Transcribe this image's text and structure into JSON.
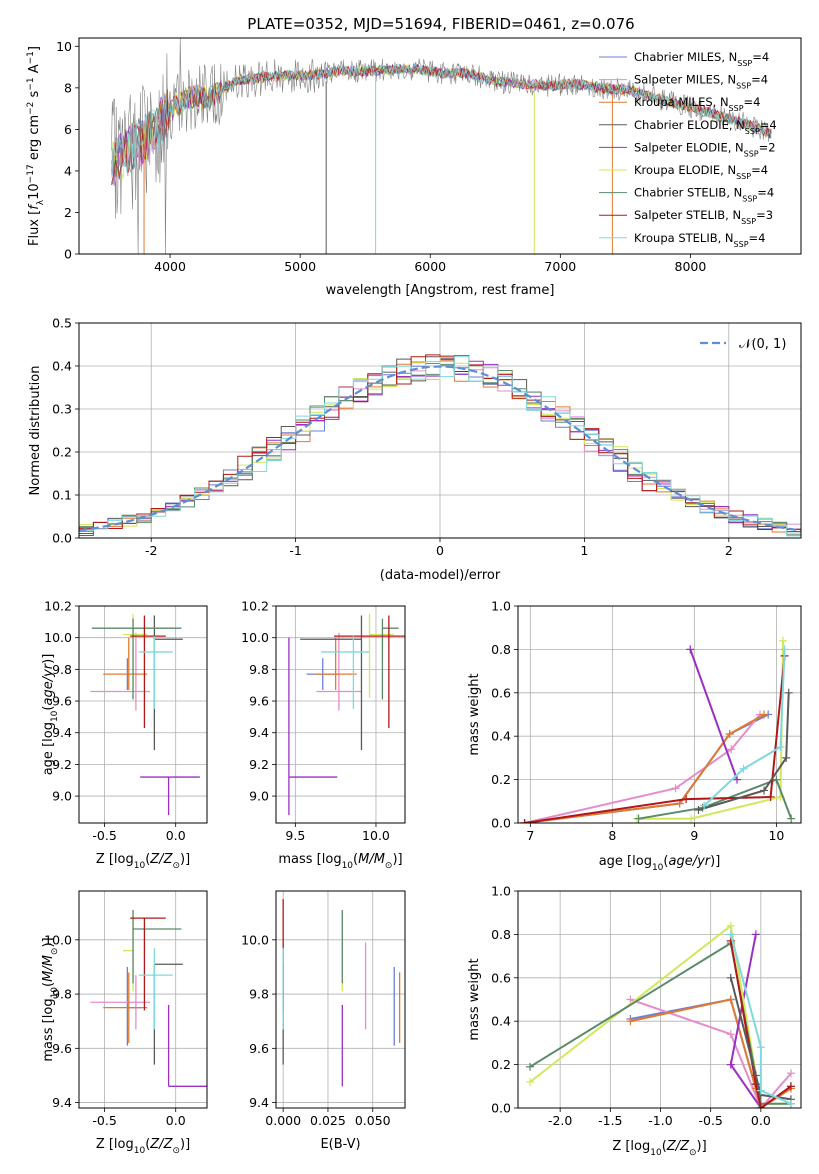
{
  "palette": {
    "Chabrier MILES": "#6a7fd6",
    "Salpeter MILES": "#e58ccc",
    "Kroupa MILES": "#e07a30",
    "Chabrier ELODIE": "#5a5a5a",
    "Salpeter ELODIE": "#9b30c0",
    "Kroupa ELODIE": "#d0e85a",
    "Chabrier STELIB": "#5b8a6a",
    "Salpeter STELIB": "#b01818",
    "Kroupa STELIB": "#7fd8dd",
    "data": "#808080",
    "normal": "#5b8fd6"
  },
  "chart_data": [
    {
      "id": "spectrum",
      "type": "line",
      "title": "PLATE=0352, MJD=51694, FIBERID=0461, z=0.076",
      "xlabel": "wavelength [Angstrom, rest frame]",
      "ylabel": "Flux [f_λ 10^-17 erg cm^-2 s^-1 A^-1]",
      "xlim": [
        3300,
        8850
      ],
      "ylim": [
        0,
        10.4
      ],
      "xticks": [
        4000,
        5000,
        6000,
        7000,
        8000
      ],
      "yticks": [
        0,
        2,
        4,
        6,
        8,
        10
      ],
      "legend_position": "right",
      "continuum": {
        "x": [
          3550,
          3600,
          3700,
          3800,
          3900,
          4000,
          4100,
          4200,
          4300,
          4400,
          4500,
          4700,
          4900,
          5100,
          5300,
          5500,
          5700,
          5900,
          6100,
          6300,
          6500,
          6700,
          6900,
          7100,
          7300,
          7500,
          7700,
          7900,
          8100,
          8300,
          8500,
          8620
        ],
        "y": [
          4.4,
          4.6,
          5.1,
          5.5,
          6.2,
          6.9,
          7.4,
          7.6,
          7.5,
          7.9,
          8.3,
          8.5,
          8.6,
          8.6,
          8.8,
          8.8,
          8.9,
          8.9,
          8.7,
          8.7,
          8.3,
          8.2,
          8.1,
          8.2,
          8.0,
          7.9,
          7.6,
          7.2,
          6.9,
          6.5,
          6.1,
          5.8
        ]
      },
      "series": [
        {
          "name": "Chabrier MILES",
          "legend": "Chabrier MILES, N",
          "nssp": "4"
        },
        {
          "name": "Salpeter MILES",
          "legend": "Salpeter MILES, N",
          "nssp": "4"
        },
        {
          "name": "Kroupa MILES",
          "legend": "Kroupa MILES, N",
          "nssp": "4"
        },
        {
          "name": "Chabrier ELODIE",
          "legend": "Chabrier ELODIE, N",
          "nssp": "4"
        },
        {
          "name": "Salpeter ELODIE",
          "legend": "Salpeter ELODIE, N",
          "nssp": "2"
        },
        {
          "name": "Kroupa ELODIE",
          "legend": "Kroupa ELODIE, N",
          "nssp": "4"
        },
        {
          "name": "Chabrier STELIB",
          "legend": "Chabrier STELIB, N",
          "nssp": "4"
        },
        {
          "name": "Salpeter STELIB",
          "legend": "Salpeter STELIB, N",
          "nssp": "3"
        },
        {
          "name": "Kroupa STELIB",
          "legend": "Kroupa STELIB, N",
          "nssp": "4"
        }
      ],
      "legend_sub": "SSP",
      "spikes": [
        {
          "x": 5200,
          "y0": 0,
          "y1": 8.3,
          "color": "#5a5a5a"
        },
        {
          "x": 5580,
          "y0": 0,
          "y1": 8.5,
          "color": "#7fd8dd"
        },
        {
          "x": 6800,
          "y0": 0,
          "y1": 7.8,
          "color": "#d0e85a"
        },
        {
          "x": 7400,
          "y0": 0,
          "y1": 7.6,
          "color": "#e07a30"
        },
        {
          "x": 3800,
          "y0": 0,
          "y1": 5.8,
          "color": "#e07a30"
        }
      ]
    },
    {
      "id": "residuals",
      "type": "histogram",
      "xlabel": "(data-model)/error",
      "ylabel": "Normed distribution",
      "xlim": [
        -2.5,
        2.5
      ],
      "ylim": [
        0,
        0.5
      ],
      "xticks": [
        -2,
        -1,
        0,
        1,
        2
      ],
      "yticks": [
        0.0,
        0.1,
        0.2,
        0.3,
        0.4,
        0.5
      ],
      "legend": "𝒩(0, 1)",
      "bin_width": 0.1
    },
    {
      "id": "age_vs_Z",
      "type": "errorbar",
      "xlabel": "Z [log10(Z/Z⊙)]",
      "ylabel": "age [log10(age/yr)]",
      "xlim": [
        -0.68,
        0.22
      ],
      "ylim": [
        8.83,
        10.2
      ],
      "xticks": [
        -0.5,
        0.0
      ],
      "yticks": [
        9.0,
        9.2,
        9.4,
        9.6,
        9.8,
        10.0,
        10.2
      ],
      "points": [
        {
          "name": "Chabrier MILES",
          "x": -0.34,
          "xerr": [
            0.0,
            0.0
          ],
          "y": 9.77,
          "yerr": [
            0.1,
            0.1
          ]
        },
        {
          "name": "Salpeter MILES",
          "x": -0.28,
          "xerr": [
            0.32,
            0.1
          ],
          "y": 9.66,
          "yerr": [
            0.12,
            0.37
          ]
        },
        {
          "name": "Kroupa MILES",
          "x": -0.33,
          "xerr": [
            0.18,
            0.13
          ],
          "y": 9.77,
          "yerr": [
            0.1,
            0.23
          ]
        },
        {
          "name": "Chabrier ELODIE",
          "x": -0.15,
          "xerr": [
            0.0,
            0.2
          ],
          "y": 9.99,
          "yerr": [
            0.7,
            0.15
          ]
        },
        {
          "name": "Salpeter ELODIE",
          "x": -0.05,
          "xerr": [
            0.2,
            0.22
          ],
          "y": 9.12,
          "yerr": [
            0.24,
            0.0
          ]
        },
        {
          "name": "Kroupa ELODIE",
          "x": -0.3,
          "xerr": [
            0.07,
            0.1
          ],
          "y": 10.02,
          "yerr": [
            0.4,
            0.13
          ]
        },
        {
          "name": "Chabrier STELIB",
          "x": -0.3,
          "xerr": [
            0.29,
            0.34
          ],
          "y": 10.06,
          "yerr": [
            0.45,
            0.06
          ]
        },
        {
          "name": "Salpeter STELIB",
          "x": -0.22,
          "xerr": [
            0.1,
            0.15
          ],
          "y": 10.01,
          "yerr": [
            0.58,
            0.13
          ]
        },
        {
          "name": "Kroupa STELIB",
          "x": -0.15,
          "xerr": [
            0.11,
            0.13
          ],
          "y": 9.91,
          "yerr": [
            0.36,
            0.1
          ]
        }
      ]
    },
    {
      "id": "age_vs_mass",
      "type": "errorbar",
      "xlabel": "mass [log10(M/M⊙)]",
      "xlim": [
        9.38,
        10.18
      ],
      "ylim": [
        8.83,
        10.2
      ],
      "xticks": [
        9.5,
        10.0
      ],
      "yticks": [
        9.0,
        9.2,
        9.4,
        9.6,
        9.8,
        10.0,
        10.2
      ],
      "points": [
        {
          "name": "Chabrier MILES",
          "x": 9.67,
          "xerr": [
            0.1,
            0.1
          ],
          "y": 9.77,
          "yerr": [
            0.1,
            0.1
          ]
        },
        {
          "name": "Salpeter MILES",
          "x": 9.77,
          "xerr": [
            0.14,
            0.14
          ],
          "y": 9.66,
          "yerr": [
            0.12,
            0.37
          ]
        },
        {
          "name": "Kroupa MILES",
          "x": 9.75,
          "xerr": [
            0.13,
            0.13
          ],
          "y": 9.77,
          "yerr": [
            0.1,
            0.23
          ]
        },
        {
          "name": "Chabrier ELODIE",
          "x": 9.91,
          "xerr": [
            0.38,
            0.0
          ],
          "y": 9.99,
          "yerr": [
            0.7,
            0.15
          ]
        },
        {
          "name": "Salpeter ELODIE",
          "x": 9.46,
          "xerr": [
            0.0,
            0.3
          ],
          "y": 9.12,
          "yerr": [
            0.24,
            0.88
          ]
        },
        {
          "name": "Kroupa ELODIE",
          "x": 9.96,
          "xerr": [
            0.0,
            0.15
          ],
          "y": 10.02,
          "yerr": [
            0.4,
            0.13
          ]
        },
        {
          "name": "Chabrier STELIB",
          "x": 10.04,
          "xerr": [
            0.0,
            0.1
          ],
          "y": 10.06,
          "yerr": [
            0.45,
            0.06
          ]
        },
        {
          "name": "Salpeter STELIB",
          "x": 10.08,
          "xerr": [
            0.34,
            0.1
          ],
          "y": 10.01,
          "yerr": [
            0.58,
            0.13
          ]
        },
        {
          "name": "Kroupa STELIB",
          "x": 9.86,
          "xerr": [
            0.2,
            0.1
          ],
          "y": 9.91,
          "yerr": [
            0.36,
            0.1
          ]
        }
      ]
    },
    {
      "id": "weight_vs_age",
      "type": "line",
      "xlabel": "age [log10(age/yr)]",
      "ylabel": "mass weight",
      "xlim": [
        6.85,
        10.3
      ],
      "ylim": [
        0,
        1.0
      ],
      "xticks": [
        7,
        8,
        9,
        10
      ],
      "yticks": [
        0.0,
        0.2,
        0.4,
        0.6,
        0.8,
        1.0
      ],
      "series": [
        {
          "name": "Chabrier MILES",
          "x": [
            6.93,
            8.82,
            9.43,
            9.9
          ],
          "y": [
            0.0,
            0.09,
            0.41,
            0.5
          ]
        },
        {
          "name": "Salpeter MILES",
          "x": [
            6.93,
            8.77,
            9.45,
            9.8
          ],
          "y": [
            0.0,
            0.16,
            0.34,
            0.5
          ]
        },
        {
          "name": "Kroupa MILES",
          "x": [
            6.93,
            8.82,
            9.43,
            9.85
          ],
          "y": [
            0.0,
            0.09,
            0.41,
            0.5
          ]
        },
        {
          "name": "Salpeter ELODIE",
          "x": [
            8.95,
            9.52
          ],
          "y": [
            0.8,
            0.2
          ]
        },
        {
          "name": "Kroupa ELODIE",
          "x": [
            8.3,
            8.96,
            10.05,
            10.08
          ],
          "y": [
            0.02,
            0.02,
            0.12,
            0.84
          ]
        },
        {
          "name": "Chabrier STELIB",
          "x": [
            8.32,
            9.1,
            10.0,
            10.18
          ],
          "y": [
            0.02,
            0.07,
            0.2,
            0.02
          ]
        },
        {
          "name": "Salpeter STELIB",
          "x": [
            6.93,
            8.9,
            9.93,
            10.1
          ],
          "y": [
            0.0,
            0.11,
            0.12,
            0.77
          ]
        },
        {
          "name": "Chabrier ELODIE",
          "x": [
            9.05,
            9.85,
            10.12,
            10.15
          ],
          "y": [
            0.06,
            0.15,
            0.3,
            0.6
          ]
        },
        {
          "name": "Kroupa STELIB",
          "x": [
            9.12,
            9.6,
            10.05,
            10.1
          ],
          "y": [
            0.08,
            0.25,
            0.35,
            0.8
          ]
        }
      ]
    },
    {
      "id": "mass_vs_Z",
      "type": "errorbar",
      "xlabel": "Z [log10(Z/Z⊙)]",
      "ylabel": "mass [log10(M/M⊙)]",
      "xlim": [
        -0.68,
        0.22
      ],
      "ylim": [
        9.38,
        10.18
      ],
      "xticks": [
        -0.5,
        0.0
      ],
      "yticks": [
        9.4,
        9.6,
        9.8,
        10.0
      ],
      "points": [
        {
          "name": "Chabrier MILES",
          "x": -0.34,
          "xerr": [
            0.0,
            0.1
          ],
          "y": 9.75,
          "yerr": [
            0.14,
            0.15
          ]
        },
        {
          "name": "Salpeter MILES",
          "x": -0.28,
          "xerr": [
            0.32,
            0.1
          ],
          "y": 9.77,
          "yerr": [
            0.1,
            0.1
          ]
        },
        {
          "name": "Kroupa MILES",
          "x": -0.33,
          "xerr": [
            0.18,
            0.13
          ],
          "y": 9.75,
          "yerr": [
            0.13,
            0.13
          ]
        },
        {
          "name": "Chabrier ELODIE",
          "x": -0.15,
          "xerr": [
            0.0,
            0.2
          ],
          "y": 9.91,
          "yerr": [
            0.37,
            0.0
          ]
        },
        {
          "name": "Salpeter ELODIE",
          "x": -0.05,
          "xerr": [
            0.0,
            0.27
          ],
          "y": 9.46,
          "yerr": [
            0.0,
            0.3
          ]
        },
        {
          "name": "Kroupa ELODIE",
          "x": -0.3,
          "xerr": [
            0.07,
            0.0
          ],
          "y": 9.96,
          "yerr": [
            0.15,
            0.15
          ]
        },
        {
          "name": "Chabrier STELIB",
          "x": -0.3,
          "xerr": [
            0.0,
            0.34
          ],
          "y": 10.04,
          "yerr": [
            0.2,
            0.07
          ]
        },
        {
          "name": "Salpeter STELIB",
          "x": -0.22,
          "xerr": [
            0.1,
            0.15
          ],
          "y": 10.08,
          "yerr": [
            0.34,
            0.0
          ]
        },
        {
          "name": "Kroupa STELIB",
          "x": -0.15,
          "xerr": [
            0.11,
            0.13
          ],
          "y": 9.87,
          "yerr": [
            0.2,
            0.1
          ]
        }
      ]
    },
    {
      "id": "mass_vs_EBV",
      "type": "errorbar",
      "xlabel": "E(B-V)",
      "xlim": [
        -0.004,
        0.068
      ],
      "ylim": [
        9.38,
        10.18
      ],
      "xticks": [
        0.0,
        0.025,
        0.05
      ],
      "xticklabels": [
        "0.000",
        "0.025",
        "0.050"
      ],
      "yticks": [
        9.4,
        9.6,
        9.8,
        10.0
      ],
      "points": [
        {
          "name": "Chabrier MILES",
          "x": 0.062,
          "y": 9.75,
          "yerr": [
            0.14,
            0.15
          ]
        },
        {
          "name": "Salpeter MILES",
          "x": 0.046,
          "y": 9.77,
          "yerr": [
            0.1,
            0.22
          ]
        },
        {
          "name": "Kroupa MILES",
          "x": 0.065,
          "y": 9.75,
          "yerr": [
            0.13,
            0.13
          ]
        },
        {
          "name": "Chabrier ELODIE",
          "x": 0.0,
          "y": 9.91,
          "yerr": [
            0.37,
            0.0
          ]
        },
        {
          "name": "Salpeter ELODIE",
          "x": 0.033,
          "y": 9.46,
          "yerr": [
            0.0,
            0.3
          ]
        },
        {
          "name": "Kroupa ELODIE",
          "x": 0.033,
          "y": 9.96,
          "yerr": [
            0.15,
            0.15
          ]
        },
        {
          "name": "Chabrier STELIB",
          "x": 0.033,
          "y": 10.04,
          "yerr": [
            0.2,
            0.07
          ]
        },
        {
          "name": "Salpeter STELIB",
          "x": 0.0,
          "y": 10.08,
          "yerr": [
            0.34,
            0.07
          ]
        },
        {
          "name": "Kroupa STELIB",
          "x": 0.0,
          "y": 9.87,
          "yerr": [
            0.2,
            0.1
          ]
        }
      ]
    },
    {
      "id": "weight_vs_Z",
      "type": "line",
      "xlabel": "Z [log10(Z/Z⊙)]",
      "ylabel": "mass weight",
      "xlim": [
        -2.42,
        0.4
      ],
      "ylim": [
        0,
        1.0
      ],
      "xticks": [
        -2.0,
        -1.5,
        -1.0,
        -0.5,
        0.0
      ],
      "yticks": [
        0.0,
        0.2,
        0.4,
        0.6,
        0.8,
        1.0
      ],
      "series": [
        {
          "name": "Chabrier MILES",
          "x": [
            -1.3,
            -0.3,
            -0.05,
            0.0,
            0.3
          ],
          "y": [
            0.41,
            0.5,
            0.09,
            0.0,
            0.1
          ]
        },
        {
          "name": "Salpeter MILES",
          "x": [
            -1.3,
            -0.3,
            0.0,
            0.3
          ],
          "y": [
            0.5,
            0.34,
            0.0,
            0.16
          ]
        },
        {
          "name": "Kroupa MILES",
          "x": [
            -1.3,
            -0.3,
            -0.05,
            0.0,
            0.3
          ],
          "y": [
            0.4,
            0.5,
            0.09,
            0.0,
            0.09
          ]
        },
        {
          "name": "Salpeter ELODIE",
          "x": [
            -0.05,
            -0.3,
            0.0
          ],
          "y": [
            0.8,
            0.2,
            0.0
          ]
        },
        {
          "name": "Kroupa ELODIE",
          "x": [
            -2.3,
            -0.3,
            0.0,
            0.3
          ],
          "y": [
            0.12,
            0.84,
            0.02,
            0.02
          ]
        },
        {
          "name": "Chabrier STELIB",
          "x": [
            -2.3,
            -0.3,
            0.0,
            0.3
          ],
          "y": [
            0.19,
            0.76,
            0.02,
            0.02
          ]
        },
        {
          "name": "Salpeter STELIB",
          "x": [
            -0.3,
            -0.05,
            0.0,
            0.3
          ],
          "y": [
            0.77,
            0.11,
            0.0,
            0.1
          ]
        },
        {
          "name": "Chabrier ELODIE",
          "x": [
            -0.3,
            -0.05,
            0.0,
            0.3
          ],
          "y": [
            0.6,
            0.15,
            0.06,
            0.04
          ]
        },
        {
          "name": "Kroupa STELIB",
          "x": [
            -0.3,
            0.0,
            0.0,
            0.3
          ],
          "y": [
            0.8,
            0.28,
            0.08,
            0.02
          ]
        }
      ]
    }
  ]
}
